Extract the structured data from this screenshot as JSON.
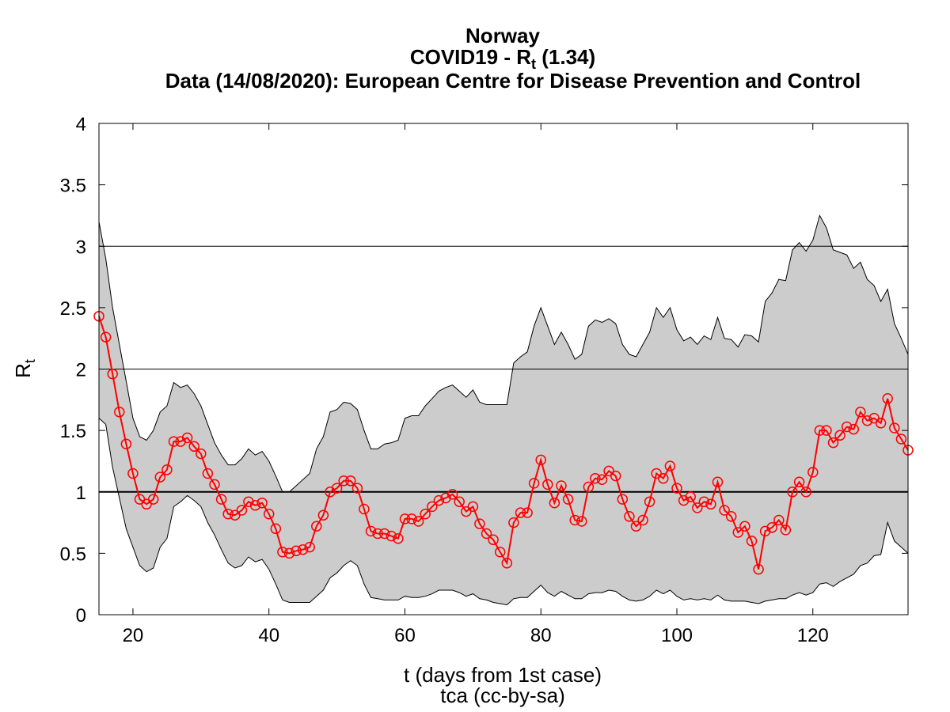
{
  "title": {
    "country": "Norway",
    "metric_prefix": "COVID19 - R",
    "metric_sub": "t",
    "metric_suffix": " (1.34)",
    "source": "Data (14/08/2020): European Centre for Disease Prevention and Control"
  },
  "credit": "tca (cc-by-sa)",
  "colors": {
    "series": "#ff0000",
    "band": "#cccccc",
    "reference": "#000000"
  },
  "chart_data": {
    "type": "line",
    "xlabel": "t (days from 1st case)",
    "ylabel": "R",
    "ylabel_sub": "t",
    "xlim": [
      15,
      134
    ],
    "ylim": [
      0,
      4
    ],
    "xticks": [
      20,
      40,
      60,
      80,
      100,
      120
    ],
    "yticks": [
      0,
      0.5,
      1,
      1.5,
      2,
      2.5,
      3,
      3.5,
      4
    ],
    "ytick_labels": [
      "0",
      "0.5",
      "1",
      "1.5",
      "2",
      "2.5",
      "3",
      "3.5",
      "4"
    ],
    "hlines": [
      1,
      2,
      3
    ],
    "x": [
      15,
      16,
      17,
      18,
      19,
      20,
      21,
      22,
      23,
      24,
      25,
      26,
      27,
      28,
      29,
      30,
      31,
      32,
      33,
      34,
      35,
      36,
      37,
      38,
      39,
      40,
      41,
      42,
      43,
      44,
      45,
      46,
      47,
      48,
      49,
      50,
      51,
      52,
      53,
      54,
      55,
      56,
      57,
      58,
      59,
      60,
      61,
      62,
      63,
      64,
      65,
      66,
      67,
      68,
      69,
      70,
      71,
      72,
      73,
      74,
      75,
      76,
      77,
      78,
      79,
      80,
      81,
      82,
      83,
      84,
      85,
      86,
      87,
      88,
      89,
      90,
      91,
      92,
      93,
      94,
      95,
      96,
      97,
      98,
      99,
      100,
      101,
      102,
      103,
      104,
      105,
      106,
      107,
      108,
      109,
      110,
      111,
      112,
      113,
      114,
      115,
      116,
      117,
      118,
      119,
      120,
      121,
      122,
      123,
      124,
      125,
      126,
      127,
      128,
      129,
      130,
      131,
      132,
      133,
      134
    ],
    "series": [
      {
        "values": [
          2.43,
          2.26,
          1.96,
          1.65,
          1.39,
          1.15,
          0.94,
          0.9,
          0.94,
          1.12,
          1.18,
          1.41,
          1.41,
          1.44,
          1.37,
          1.31,
          1.15,
          1.06,
          0.94,
          0.82,
          0.81,
          0.85,
          0.92,
          0.89,
          0.91,
          0.82,
          0.7,
          0.51,
          0.5,
          0.52,
          0.53,
          0.55,
          0.72,
          0.81,
          1.0,
          1.03,
          1.09,
          1.09,
          1.03,
          0.86,
          0.68,
          0.66,
          0.66,
          0.64,
          0.62,
          0.78,
          0.78,
          0.76,
          0.82,
          0.88,
          0.93,
          0.95,
          0.98,
          0.92,
          0.84,
          0.88,
          0.74,
          0.66,
          0.61,
          0.51,
          0.42,
          0.75,
          0.83,
          0.83,
          1.07,
          1.26,
          1.06,
          0.91,
          1.05,
          0.94,
          0.77,
          0.76,
          1.04,
          1.11,
          1.1,
          1.17,
          1.13,
          0.94,
          0.8,
          0.72,
          0.77,
          0.92,
          1.15,
          1.11,
          1.21,
          1.03,
          0.93,
          0.96,
          0.87,
          0.92,
          0.9,
          1.08,
          0.85,
          0.8,
          0.67,
          0.72,
          0.6,
          0.37,
          0.68,
          0.71,
          0.77,
          0.69,
          1.0,
          1.08,
          1.0,
          1.16,
          1.5,
          1.5,
          1.4,
          1.46,
          1.53,
          1.51,
          1.65,
          1.58,
          1.6,
          1.56,
          1.76,
          1.52,
          1.43,
          1.34
        ]
      }
    ],
    "band_upper": [
      3.2,
      2.9,
      2.5,
      2.2,
      1.9,
      1.6,
      1.45,
      1.42,
      1.5,
      1.65,
      1.7,
      1.89,
      1.85,
      1.87,
      1.8,
      1.7,
      1.55,
      1.4,
      1.3,
      1.22,
      1.22,
      1.27,
      1.35,
      1.3,
      1.33,
      1.25,
      1.13,
      1.0,
      1.0,
      1.05,
      1.1,
      1.15,
      1.35,
      1.45,
      1.65,
      1.67,
      1.73,
      1.72,
      1.67,
      1.5,
      1.35,
      1.35,
      1.39,
      1.4,
      1.42,
      1.6,
      1.62,
      1.62,
      1.7,
      1.76,
      1.82,
      1.85,
      1.87,
      1.82,
      1.77,
      1.83,
      1.73,
      1.71,
      1.71,
      1.71,
      1.71,
      2.05,
      2.1,
      2.14,
      2.35,
      2.5,
      2.35,
      2.2,
      2.3,
      2.2,
      2.08,
      2.12,
      2.35,
      2.4,
      2.38,
      2.41,
      2.37,
      2.2,
      2.12,
      2.1,
      2.2,
      2.3,
      2.5,
      2.42,
      2.5,
      2.32,
      2.23,
      2.26,
      2.2,
      2.27,
      2.24,
      2.42,
      2.25,
      2.24,
      2.18,
      2.28,
      2.27,
      2.22,
      2.55,
      2.62,
      2.73,
      2.72,
      2.97,
      3.03,
      2.96,
      3.05,
      3.25,
      3.15,
      2.97,
      2.95,
      2.93,
      2.82,
      2.87,
      2.73,
      2.68,
      2.55,
      2.65,
      2.37,
      2.25,
      2.12
    ],
    "band_lower": [
      1.6,
      1.55,
      1.2,
      0.95,
      0.7,
      0.55,
      0.4,
      0.35,
      0.38,
      0.55,
      0.62,
      0.88,
      0.92,
      0.97,
      0.93,
      0.88,
      0.75,
      0.65,
      0.53,
      0.42,
      0.38,
      0.4,
      0.47,
      0.43,
      0.45,
      0.37,
      0.25,
      0.12,
      0.1,
      0.1,
      0.1,
      0.1,
      0.15,
      0.2,
      0.3,
      0.34,
      0.4,
      0.44,
      0.4,
      0.25,
      0.14,
      0.13,
      0.12,
      0.12,
      0.12,
      0.15,
      0.14,
      0.14,
      0.15,
      0.17,
      0.2,
      0.2,
      0.2,
      0.18,
      0.15,
      0.17,
      0.13,
      0.12,
      0.1,
      0.09,
      0.08,
      0.13,
      0.14,
      0.14,
      0.19,
      0.24,
      0.18,
      0.15,
      0.19,
      0.16,
      0.13,
      0.13,
      0.17,
      0.18,
      0.18,
      0.2,
      0.19,
      0.15,
      0.12,
      0.11,
      0.12,
      0.15,
      0.2,
      0.17,
      0.2,
      0.15,
      0.12,
      0.13,
      0.12,
      0.13,
      0.12,
      0.16,
      0.12,
      0.11,
      0.11,
      0.11,
      0.1,
      0.09,
      0.11,
      0.12,
      0.13,
      0.13,
      0.16,
      0.18,
      0.16,
      0.18,
      0.25,
      0.26,
      0.23,
      0.27,
      0.3,
      0.33,
      0.4,
      0.42,
      0.48,
      0.49,
      0.75,
      0.6,
      0.55,
      0.5
    ]
  }
}
